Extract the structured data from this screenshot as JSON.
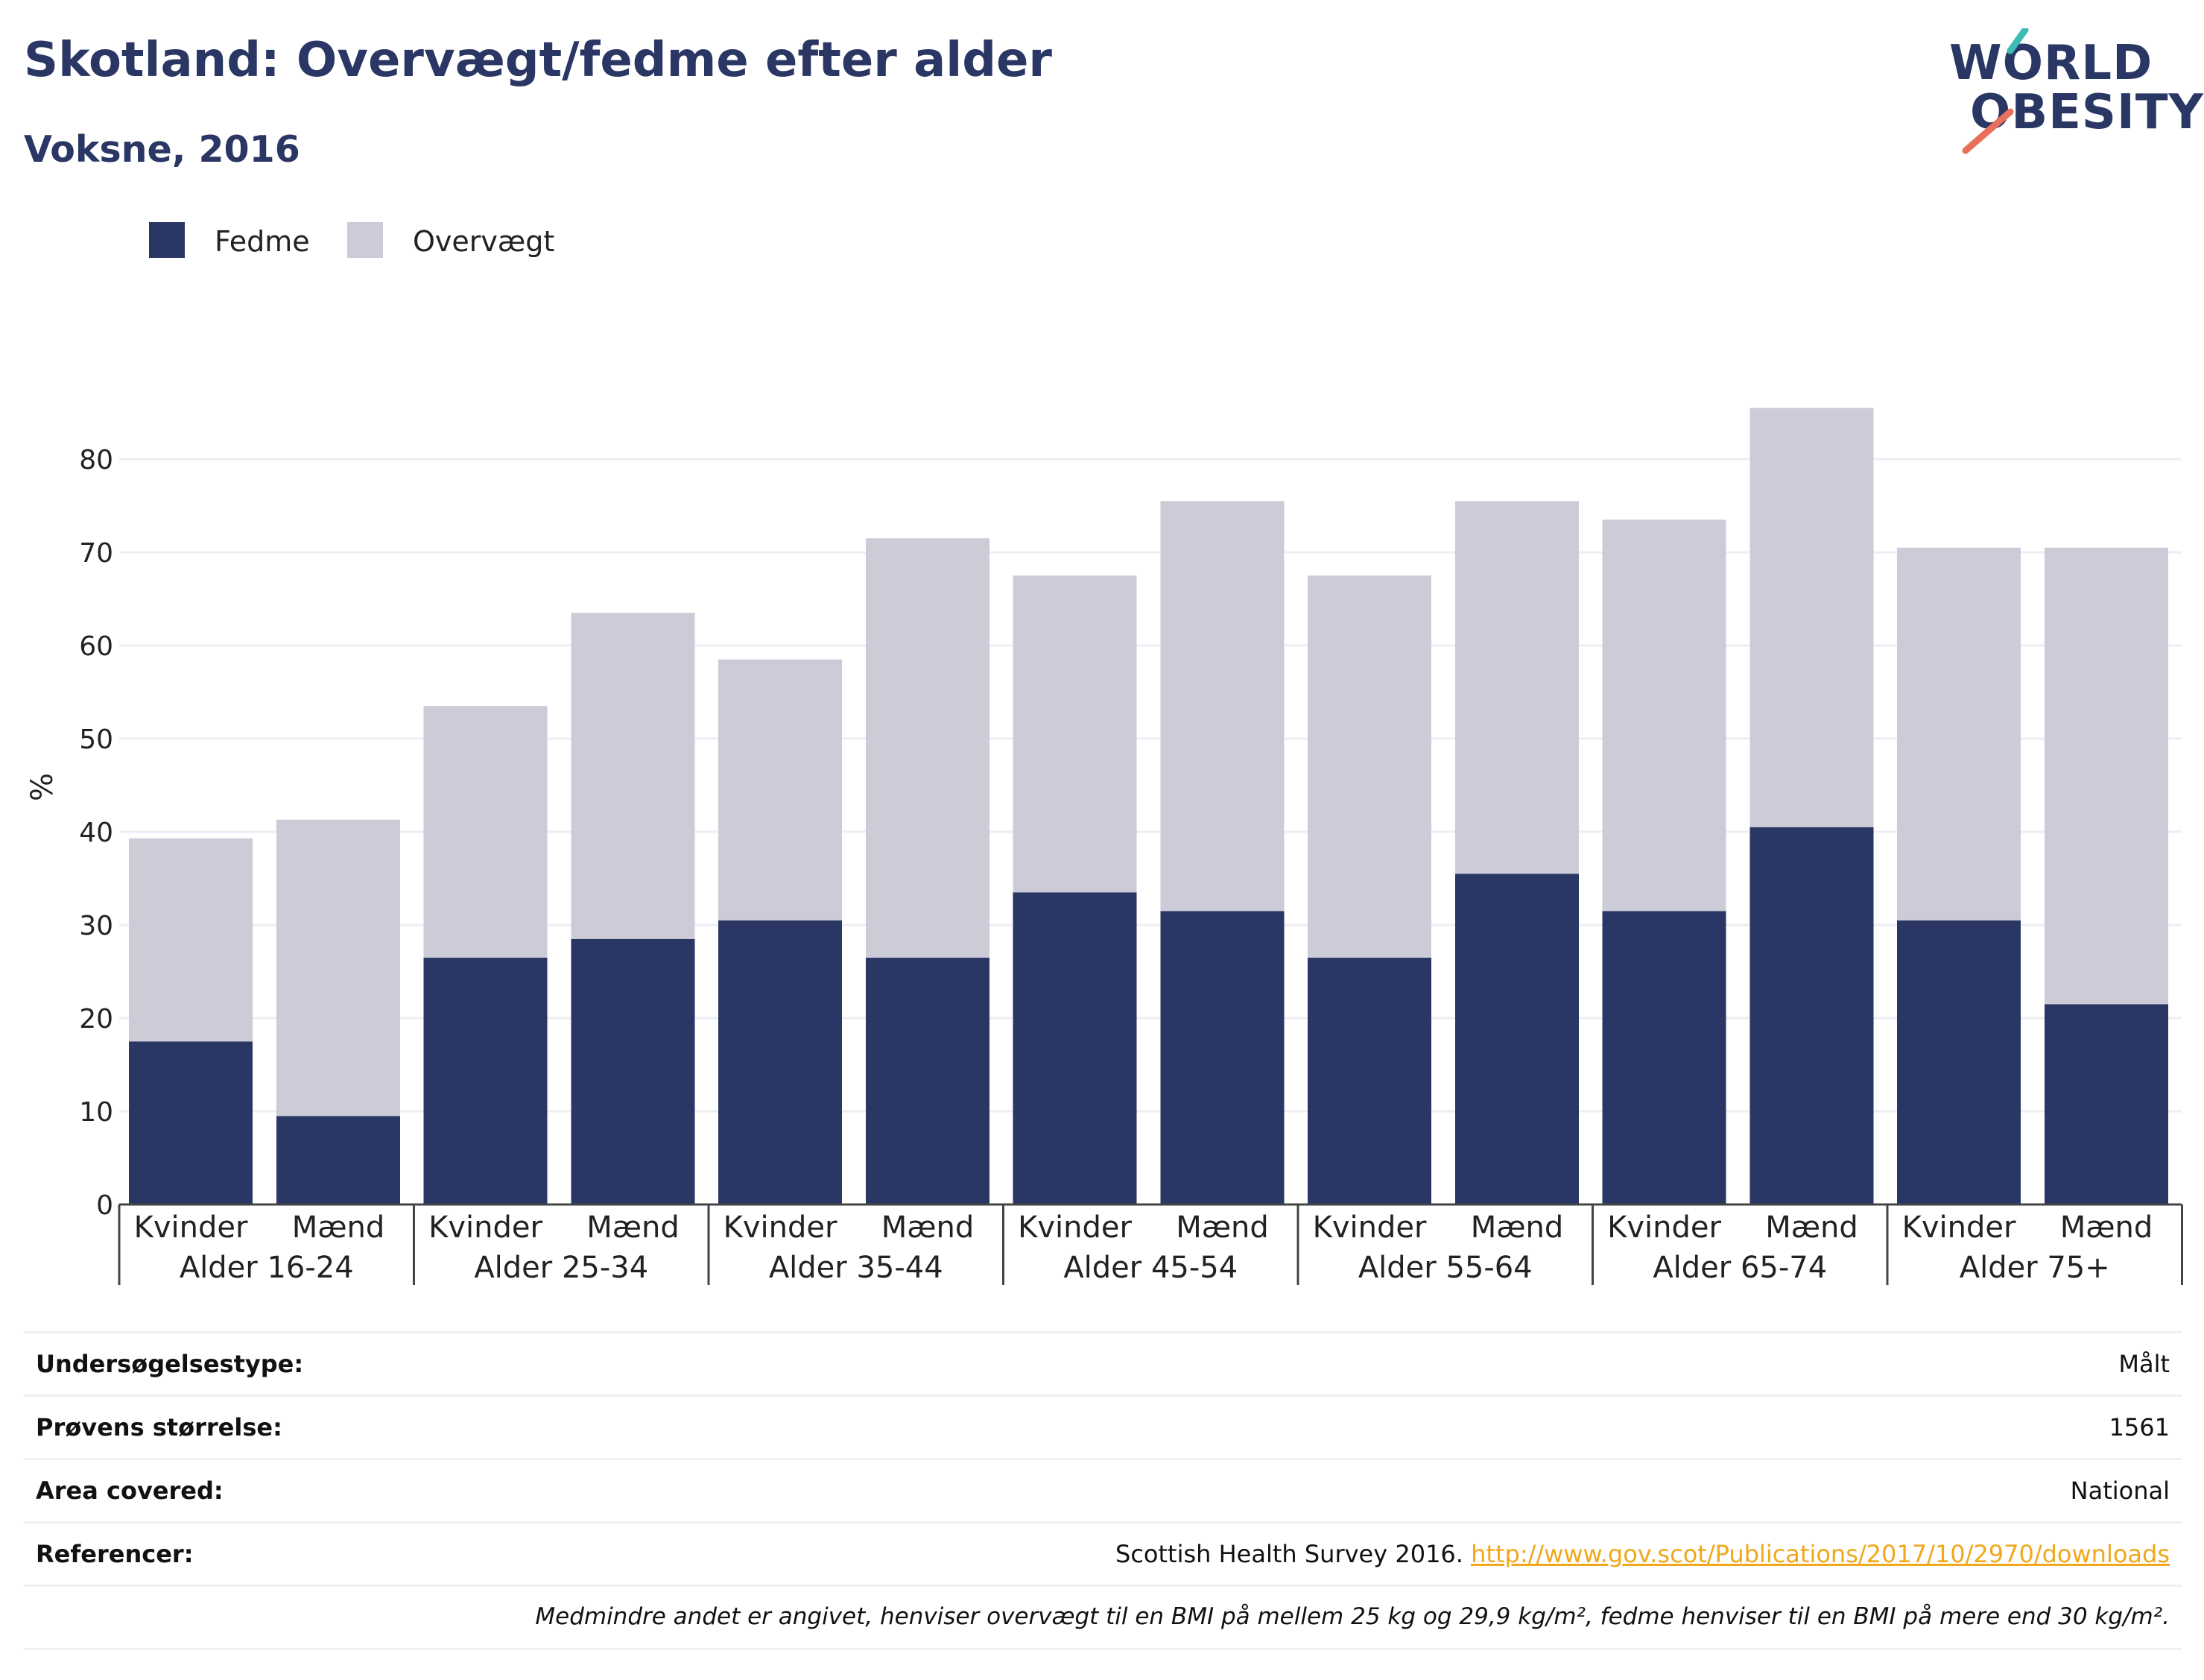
{
  "header": {
    "title": "Skotland: Overvægt/fedme efter alder",
    "subtitle": "Voksne, 2016"
  },
  "logo": {
    "line1": "WORLD",
    "line2": "OBESITY"
  },
  "colors": {
    "fedme": "#2a3663",
    "overvaegt": "#cbccd7",
    "title": "#2a3663",
    "link": "#f0a81c",
    "grid": "#eceef4"
  },
  "chart_data": {
    "type": "bar",
    "stacked": true,
    "ylabel": "%",
    "ylim": [
      0,
      90
    ],
    "yticks": [
      0,
      10,
      20,
      30,
      40,
      50,
      60,
      70,
      80
    ],
    "grid": true,
    "legend_position": "top-left",
    "groups": [
      "Alder 16-24",
      "Alder 25-34",
      "Alder 35-44",
      "Alder 45-54",
      "Alder 55-64",
      "Alder 65-74",
      "Alder 75+"
    ],
    "subcategories": [
      "Kvinder",
      "Mænd"
    ],
    "series": [
      {
        "name": "Fedme",
        "values": [
          17.5,
          9.5,
          26.5,
          28.5,
          30.5,
          26.5,
          33.5,
          31.5,
          26.5,
          35.5,
          31.5,
          40.5,
          30.5,
          21.5
        ]
      },
      {
        "name": "Overvægt",
        "values": [
          21.8,
          31.8,
          27,
          35,
          28,
          45,
          34,
          44,
          41,
          40,
          42,
          45,
          40,
          49
        ]
      }
    ]
  },
  "info": [
    {
      "label": "Undersøgelsestype:",
      "value": "Målt"
    },
    {
      "label": "Prøvens størrelse:",
      "value": "1561"
    },
    {
      "label": "Area covered:",
      "value": "National"
    },
    {
      "label": "Referencer:",
      "value": "Scottish Health Survey 2016.",
      "link": "http://www.gov.scot/Publications/2017/10/2970/downloads"
    }
  ],
  "footnote": "Medmindre andet er angivet, henviser overvægt til en BMI på mellem 25 kg og 29,9 kg/m², fedme henviser til en BMI på mere end 30 kg/m²."
}
